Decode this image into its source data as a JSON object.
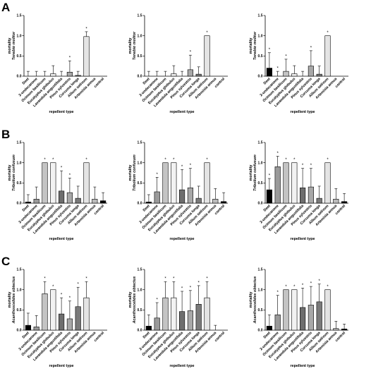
{
  "panel_letters": [
    "A",
    "B",
    "C"
  ],
  "colors": {
    "Deet": "#000000",
    "2-undecanone": "#9a9a9a",
    "Ocimum basilicum": "#c4c4c4",
    "Eucalyptus globulus": "#f2f2f2",
    "Lavandula angustifolia": "#6e6e6e",
    "Pinus sylvestris": "#a8a8a8",
    "Curcuma longa": "#7a7a7a",
    "Allium sativum": "#e4e4e4",
    "Artemisia annua": "#bbbbbb",
    "control": "#000000"
  },
  "chart_data": [
    {
      "type": "bar",
      "panel": "A",
      "categories": [
        "Deet",
        "2-undecanone",
        "Ocimum basilicum",
        "Eucalyptus globulus",
        "Lavandula angustifolia",
        "Pinus sylvestris",
        "Curcuma longa",
        "Allium sativum",
        "Artemisia annua",
        "control"
      ],
      "values": [
        0.0,
        0.0,
        0.0,
        0.06,
        0.0,
        0.1,
        0.02,
        0.98,
        0.0,
        0.0
      ],
      "errors": [
        0.12,
        0.12,
        0.12,
        0.2,
        0.12,
        0.28,
        0.1,
        0.12,
        0.0,
        0.0
      ],
      "significant": [
        false,
        false,
        false,
        false,
        false,
        true,
        false,
        true,
        false,
        false
      ],
      "ylabel": [
        "mortality",
        "Tenebio molitor"
      ],
      "xlabel": "repellent type",
      "ylim": [
        0,
        1.5
      ],
      "yticks": [
        "0.0",
        "0.5",
        "1.0",
        "1.5"
      ]
    },
    {
      "type": "bar",
      "panel": "A",
      "categories": [
        "Deet",
        "2-undecanone",
        "Ocimum basilicum",
        "Eucalyptus globulus",
        "Lavandula angustifolia",
        "Pinus sylvestris",
        "Curcuma longa",
        "Allium sativum",
        "Artemisia annua",
        "control"
      ],
      "values": [
        0.0,
        0.0,
        0.0,
        0.06,
        0.0,
        0.16,
        0.05,
        1.0,
        0.0,
        0.0
      ],
      "errors": [
        0.12,
        0.12,
        0.12,
        0.2,
        0.12,
        0.36,
        0.18,
        0.0,
        0.0,
        0.0
      ],
      "significant": [
        false,
        false,
        false,
        false,
        false,
        true,
        false,
        true,
        false,
        false
      ],
      "ylabel": [
        "mortality",
        "Tenebio molitor"
      ],
      "xlabel": "repellent type",
      "ylim": [
        0,
        1.5
      ],
      "yticks": [
        "0.0",
        "0.5",
        "1.0",
        "1.5"
      ]
    },
    {
      "type": "bar",
      "panel": "A",
      "categories": [
        "Deet",
        "2-undecanone",
        "Ocimum basilicum",
        "Eucalyptus globulus",
        "Lavandula angustifolia",
        "Pinus sylvestris",
        "Curcuma longa",
        "Allium sativum",
        "Artemisia annua",
        "control"
      ],
      "values": [
        0.2,
        0.0,
        0.12,
        0.06,
        0.0,
        0.25,
        0.05,
        1.0,
        0.0,
        0.0
      ],
      "errors": [
        0.38,
        0.12,
        0.3,
        0.2,
        0.12,
        0.38,
        0.2,
        0.0,
        0.0,
        0.0
      ],
      "significant": [
        true,
        true,
        true,
        false,
        false,
        true,
        false,
        true,
        false,
        false
      ],
      "ylabel": [
        "mortality",
        "Tenebio molitor"
      ],
      "xlabel": "repellent type",
      "ylim": [
        0,
        1.5
      ],
      "yticks": [
        "0.0",
        "0.5",
        "1.0",
        "1.5"
      ]
    },
    {
      "type": "bar",
      "panel": "B",
      "categories": [
        "Deet",
        "2-undecanone",
        "Ocimum basilicum",
        "Eucalyptus globulus",
        "Lavandula angustifolia",
        "Pinus sylvestris",
        "Curcuma longa",
        "Allium sativum",
        "Artemisia annua",
        "control"
      ],
      "values": [
        0.03,
        0.1,
        1.0,
        1.0,
        0.3,
        0.26,
        0.12,
        1.0,
        0.1,
        0.06
      ],
      "errors": [
        0.18,
        0.3,
        0.0,
        0.0,
        0.5,
        0.36,
        0.3,
        0.0,
        0.3,
        0.2
      ],
      "significant": [
        false,
        false,
        true,
        true,
        true,
        true,
        false,
        true,
        false,
        false
      ],
      "ylabel": [
        "mortality",
        "Tribolium confusum"
      ],
      "xlabel": "repellent type",
      "ylim": [
        0,
        1.5
      ],
      "yticks": [
        "0.0",
        "0.5",
        "1.0",
        "1.5"
      ]
    },
    {
      "type": "bar",
      "panel": "B",
      "categories": [
        "Deet",
        "2-undecanone",
        "Ocimum basilicum",
        "Eucalyptus globulus",
        "Lavandula angustifolia",
        "Pinus sylvestris",
        "Curcuma longa",
        "Allium sativum",
        "Artemisia annua",
        "control"
      ],
      "values": [
        0.03,
        0.28,
        1.0,
        1.0,
        0.33,
        0.38,
        0.12,
        1.0,
        0.1,
        0.04
      ],
      "errors": [
        0.18,
        0.36,
        0.0,
        0.0,
        0.5,
        0.48,
        0.3,
        0.0,
        0.26,
        0.22
      ],
      "significant": [
        false,
        true,
        true,
        true,
        true,
        true,
        false,
        true,
        false,
        false
      ],
      "ylabel": [
        "mortality",
        "Tribolium confusum"
      ],
      "xlabel": "repellent type",
      "ylim": [
        0,
        1.5
      ],
      "yticks": [
        "0.0",
        "0.5",
        "1.0",
        "1.5"
      ]
    },
    {
      "type": "bar",
      "panel": "B",
      "categories": [
        "Deet",
        "2-undecanone",
        "Ocimum basilicum",
        "Eucalyptus globulus",
        "Lavandula angustifolia",
        "Pinus sylvestris",
        "Curcuma longa",
        "Allium sativum",
        "Artemisia annua",
        "control"
      ],
      "values": [
        0.33,
        0.9,
        1.0,
        1.0,
        0.38,
        0.4,
        0.12,
        1.0,
        0.1,
        0.04
      ],
      "errors": [
        0.28,
        0.26,
        0.0,
        0.0,
        0.48,
        0.46,
        0.3,
        0.0,
        0.26,
        0.2
      ],
      "significant": [
        true,
        true,
        true,
        true,
        true,
        true,
        false,
        true,
        false,
        false
      ],
      "ylabel": [
        "mortality",
        "Tribolium confusum"
      ],
      "xlabel": "repellent type",
      "ylim": [
        0,
        1.5
      ],
      "yticks": [
        "0.0",
        "0.5",
        "1.0",
        "1.5"
      ]
    },
    {
      "type": "bar",
      "panel": "C",
      "categories": [
        "Deet",
        "2-undecanone",
        "Ocimum basilicum",
        "Eucalyptus globulus",
        "Lavandula angustifolia",
        "Pinus sylvestris",
        "Curcuma longa",
        "Allium sativum",
        "Artemisia annua",
        "control"
      ],
      "values": [
        0.12,
        0.08,
        0.9,
        1.0,
        0.4,
        0.28,
        0.58,
        0.8,
        0.0,
        0.0
      ],
      "errors": [
        0.3,
        0.28,
        0.3,
        0.0,
        0.4,
        0.44,
        0.48,
        0.4,
        0.0,
        0.0
      ],
      "significant": [
        false,
        false,
        true,
        true,
        true,
        true,
        true,
        true,
        false,
        false
      ],
      "ylabel": [
        "mortality",
        "Acanthoscelides obtectus"
      ],
      "xlabel": "repellent type",
      "ylim": [
        0,
        1.5
      ],
      "yticks": [
        "0.0",
        "0.5",
        "1.0",
        "1.5"
      ]
    },
    {
      "type": "bar",
      "panel": "C",
      "categories": [
        "Deet",
        "2-undecanone",
        "Ocimum basilicum",
        "Eucalyptus globulus",
        "Lavandula angustifolia",
        "Pinus sylvestris",
        "Curcuma longa",
        "Allium sativum",
        "Artemisia annua",
        "control"
      ],
      "values": [
        0.1,
        0.3,
        0.8,
        0.8,
        0.46,
        0.48,
        0.64,
        0.8,
        0.0,
        0.0
      ],
      "errors": [
        0.28,
        0.38,
        0.4,
        0.4,
        0.5,
        0.5,
        0.46,
        0.4,
        0.12,
        0.0
      ],
      "significant": [
        false,
        true,
        true,
        true,
        true,
        true,
        true,
        true,
        false,
        false
      ],
      "ylabel": [
        "mortality",
        "Acanthoscelides obtectus"
      ],
      "xlabel": "repellent type",
      "ylim": [
        0,
        1.5
      ],
      "yticks": [
        "0.0",
        "0.5",
        "1.0",
        "1.5"
      ]
    },
    {
      "type": "bar",
      "panel": "C",
      "categories": [
        "Deet",
        "2-undecanone",
        "Ocimum basilicum",
        "Eucalyptus globulus",
        "Lavandula angustifolia",
        "Pinus sylvestris",
        "Curcuma longa",
        "Allium sativum",
        "Artemisia annua",
        "control"
      ],
      "values": [
        0.1,
        0.38,
        1.0,
        1.0,
        0.56,
        0.62,
        0.7,
        1.0,
        0.04,
        0.03
      ],
      "errors": [
        0.28,
        0.48,
        0.0,
        0.0,
        0.48,
        0.46,
        0.44,
        0.0,
        0.18,
        0.12
      ],
      "significant": [
        false,
        true,
        true,
        true,
        true,
        true,
        true,
        true,
        false,
        false
      ],
      "ylabel": [
        "mortality",
        "Acanthoscelides obtectus"
      ],
      "xlabel": "repellent type",
      "ylim": [
        0,
        1.5
      ],
      "yticks": [
        "0.0",
        "0.5",
        "1.0",
        "1.5"
      ]
    }
  ]
}
